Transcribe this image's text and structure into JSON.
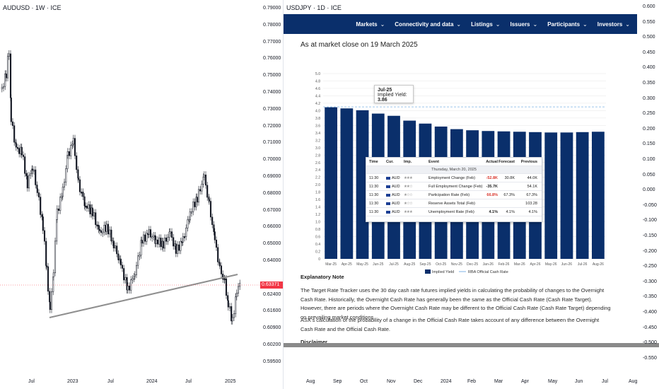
{
  "left_chart": {
    "title": "AUDUSD · 1W · ICE",
    "y_ticks": [
      "0.79000",
      "0.78000",
      "0.77000",
      "0.76000",
      "0.75000",
      "0.74000",
      "0.73000",
      "0.72000",
      "0.71000",
      "0.70000",
      "0.69000",
      "0.68000",
      "0.67000",
      "0.66000",
      "0.65000",
      "0.64000",
      "0.63371",
      "0.62400",
      "0.61600",
      "0.60900",
      "0.60200",
      "0.59500"
    ],
    "current_price": "0.63371",
    "x_ticks": [
      "Jul",
      "2023",
      "Jul",
      "2024",
      "Jul",
      "2025"
    ],
    "candle_color": "#131722",
    "trendline_color": "#8f8f8f",
    "price_tag_color": "#f23645"
  },
  "right_chart": {
    "title": "USDJPY · 1D · ICE",
    "y_ticks": [
      "0.600",
      "0.550",
      "0.500",
      "0.450",
      "0.400",
      "0.350",
      "0.300",
      "0.250",
      "0.200",
      "0.150",
      "0.100",
      "0.050",
      "0.000",
      "-0.050",
      "-0.100",
      "-0.150",
      "-0.200",
      "-0.250",
      "-0.300",
      "-0.350",
      "-0.400",
      "-0.450",
      "-0.500",
      "-0.550"
    ],
    "x_ticks": [
      "Aug",
      "Sep",
      "Oct",
      "Nov",
      "Dec",
      "2024",
      "Feb",
      "Mar",
      "Apr",
      "May",
      "Jun",
      "Jul",
      "Aug"
    ]
  },
  "asx": {
    "nav": [
      {
        "label": "Markets"
      },
      {
        "label": "Connectivity and data"
      },
      {
        "label": "Listings"
      },
      {
        "label": "Issuers"
      },
      {
        "label": "Participants"
      },
      {
        "label": "Investors"
      }
    ],
    "chev": "⌄",
    "heading": "As at market close on 19 March 2025",
    "note_title": "Explanatory Note",
    "note_p1": "The Target Rate Tracker uses the 30 day cash rate futures implied yields in calculating the probability of changes to the Overnight Cash Rate. Historically, the Overnight Cash Rate has generally been the same as the Official Cash Rate (Cash Rate Target). However, there are periods where the Overnight Cash Rate may be different to the Official Cash Rate (Cash Rate Target) depending on prevailing market conditions.",
    "note_p2": "ASX's calculation of the probability of a change in the Official Cash Rate takes account of any difference between the Overnight Cash Rate and the Official Cash Rate.",
    "disclaimer": "Disclaimer",
    "bar_color": "#0a2f6b",
    "line_color": "#7fb3e6"
  },
  "chart_data": {
    "type": "bar",
    "categories": [
      "Mar-25",
      "Apr-25",
      "May-25",
      "Jun-25",
      "Jul-25",
      "Aug-25",
      "Sep-25",
      "Oct-25",
      "Nov-25",
      "Dec-25",
      "Jan-26",
      "Feb-26",
      "Mar-26",
      "Apr-26",
      "May-26",
      "Jun-26",
      "Jul-26",
      "Aug-26"
    ],
    "series": [
      {
        "name": "Implied Yield",
        "values": [
          4.09,
          4.06,
          4.01,
          3.92,
          3.86,
          3.73,
          3.65,
          3.57,
          3.5,
          3.47,
          3.45,
          3.44,
          3.43,
          3.42,
          3.41,
          3.41,
          3.42,
          3.43
        ]
      },
      {
        "name": "RBA Official Cash Rate",
        "values": [
          4.1,
          4.1,
          4.1,
          4.1,
          4.1,
          4.1,
          4.1,
          4.1,
          4.1,
          4.1,
          4.1,
          4.1,
          4.1,
          4.1,
          4.1,
          4.1,
          4.1,
          4.1
        ]
      }
    ],
    "ylim": [
      0,
      5.0
    ],
    "y_ticks": [
      "0",
      "0.2",
      "0.4",
      "0.6",
      "0.8",
      "1.0",
      "1.2",
      "1.4",
      "1.6",
      "1.8",
      "2.0",
      "2.2",
      "2.4",
      "2.6",
      "2.8",
      "3.0",
      "3.2",
      "3.4",
      "3.6",
      "3.8",
      "4.0",
      "4.2",
      "4.4",
      "4.6",
      "4.8",
      "5.0"
    ],
    "grid": true,
    "legend": "bottom",
    "tooltip": {
      "title": "Jul-25",
      "label": "Implied Yield:",
      "value": "3.86"
    }
  },
  "eco_calendar": {
    "headers": {
      "time": "Time",
      "cur": "Cur.",
      "imp": "Imp.",
      "event": "Event",
      "actual": "Actual",
      "forecast": "Forecast",
      "previous": "Previous"
    },
    "date": "Thursday, March 20, 2025",
    "rows": [
      {
        "time": "11:30",
        "cur": "AUD",
        "stars": "★★★",
        "event": "Employment Change (Feb)",
        "actual": "-52.8K",
        "forecast": "30.8K",
        "previous": "44.0K",
        "neg": true
      },
      {
        "time": "11:30",
        "cur": "AUD",
        "stars": "★★☆",
        "event": "Full Employment Change (Feb)",
        "actual": "-35.7K",
        "forecast": "",
        "previous": "54.1K",
        "neg": false
      },
      {
        "time": "11:30",
        "cur": "AUD",
        "stars": "★☆☆",
        "event": "Participation Rate (Feb)",
        "actual": "66.8%",
        "forecast": "67.3%",
        "previous": "67.3%",
        "neg": true
      },
      {
        "time": "11:30",
        "cur": "AUD",
        "stars": "★☆☆",
        "event": "Reserve Assets Total (Feb)",
        "actual": "",
        "forecast": "",
        "previous": "103.28",
        "neg": false
      },
      {
        "time": "11:30",
        "cur": "AUD",
        "stars": "★★★",
        "event": "Unemployment Rate (Feb)",
        "actual": "4.1%",
        "forecast": "4.1%",
        "previous": "4.1%",
        "neg": false
      }
    ]
  }
}
